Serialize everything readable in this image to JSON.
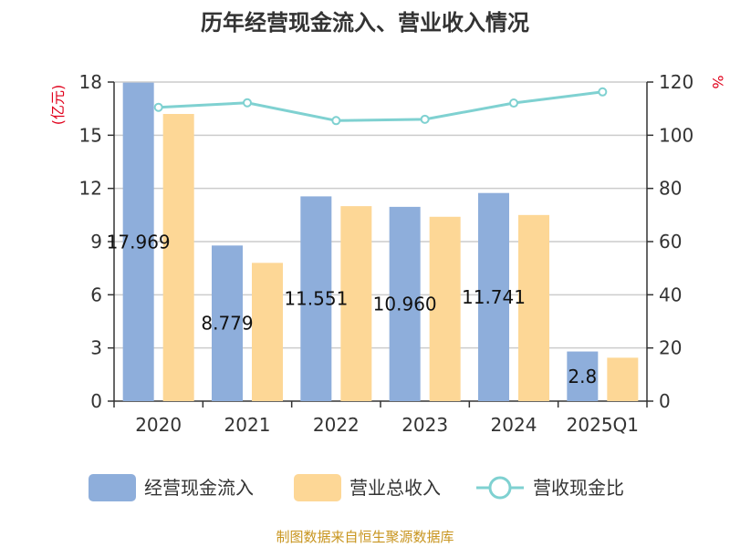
{
  "title": "历年经营现金流入、营业收入情况",
  "source": "制图数据来自恒生聚源数据库",
  "colors": {
    "cash_inflow": "#8eaedb",
    "revenue": "#fdd796",
    "ratio": "#7fd1d1",
    "axis": "#333333",
    "grid": "#cccccc",
    "unit": "#e0001b"
  },
  "chart_data": {
    "type": "bar",
    "categories": [
      "2020",
      "2021",
      "2022",
      "2023",
      "2024",
      "2025Q1"
    ],
    "y_left": {
      "unit": "(亿元)",
      "ylim": [
        0,
        18
      ],
      "ticks": [
        0,
        3,
        6,
        9,
        12,
        15,
        18
      ]
    },
    "y_right": {
      "unit": "%",
      "ylim": [
        0,
        120
      ],
      "ticks": [
        0,
        20,
        40,
        60,
        80,
        100,
        120
      ]
    },
    "grid": true,
    "legend_position": "bottom",
    "series": [
      {
        "name": "经营现金流入",
        "type": "bar",
        "axis": "left",
        "values": [
          17.969,
          8.779,
          11.551,
          10.96,
          11.741,
          2.8
        ],
        "labels": [
          "17.969",
          "8.779",
          "11.551",
          "10.960",
          "11.741",
          "2.8"
        ]
      },
      {
        "name": "营业总收入",
        "type": "bar",
        "axis": "left",
        "values": [
          16.2,
          7.8,
          11.0,
          10.4,
          10.5,
          2.45
        ]
      },
      {
        "name": "营收现金比",
        "type": "line",
        "axis": "right",
        "values": [
          110.5,
          112.2,
          105.5,
          106.0,
          112.1,
          116.3
        ]
      }
    ]
  }
}
